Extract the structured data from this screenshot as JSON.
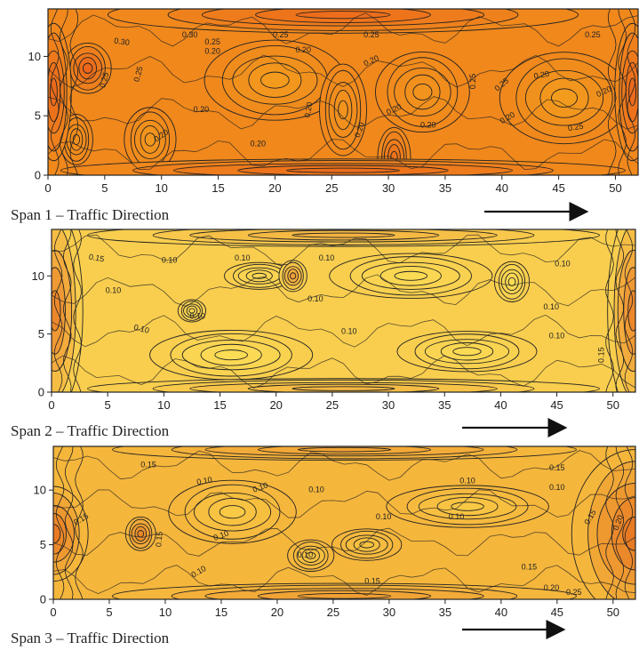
{
  "chart_data": [
    {
      "type": "heatmap",
      "subtype": "contour",
      "caption": "Span 1 – Traffic Direction",
      "direction": "left-to-right",
      "xlim": [
        0,
        52
      ],
      "ylim": [
        0,
        14
      ],
      "xticks": [
        "0",
        "5",
        "10",
        "15",
        "20",
        "25",
        "30",
        "35",
        "40",
        "45",
        "50"
      ],
      "yticks": [
        "0",
        "5",
        "10"
      ],
      "grid": false,
      "colors": {
        "low": "#f6b21e",
        "high": "#e8541a",
        "line": "#222222"
      },
      "contour_labels": [
        {
          "text": "0.30",
          "x": 6.5,
          "y": 11.2,
          "rot": 8
        },
        {
          "text": "0.30",
          "x": 12.5,
          "y": 11.8,
          "rot": 0
        },
        {
          "text": "0.25",
          "x": 14.5,
          "y": 11.2,
          "rot": 0
        },
        {
          "text": "0.20",
          "x": 14.5,
          "y": 10.4,
          "rot": 0
        },
        {
          "text": "0.25",
          "x": 20.5,
          "y": 11.8,
          "rot": 0
        },
        {
          "text": "0.20",
          "x": 22.5,
          "y": 10.5,
          "rot": 0
        },
        {
          "text": "0.25",
          "x": 28.5,
          "y": 11.8,
          "rot": 0
        },
        {
          "text": "0.20",
          "x": 28.5,
          "y": 9.6,
          "rot": -25
        },
        {
          "text": "0.25",
          "x": 37.5,
          "y": 7.9,
          "rot": -90
        },
        {
          "text": "0.25",
          "x": 40.0,
          "y": 7.6,
          "rot": -40
        },
        {
          "text": "0.20",
          "x": 43.5,
          "y": 8.4,
          "rot": -10
        },
        {
          "text": "0.25",
          "x": 48.0,
          "y": 11.8,
          "rot": 0
        },
        {
          "text": "0.20",
          "x": 49.0,
          "y": 7.0,
          "rot": -25
        },
        {
          "text": "0.25",
          "x": 46.5,
          "y": 4.0,
          "rot": -10
        },
        {
          "text": "0.20",
          "x": 40.5,
          "y": 4.8,
          "rot": -30
        },
        {
          "text": "0.20",
          "x": 30.5,
          "y": 5.5,
          "rot": -25
        },
        {
          "text": "0.20",
          "x": 33.5,
          "y": 4.2,
          "rot": 0
        },
        {
          "text": "0.20",
          "x": 27.5,
          "y": 3.8,
          "rot": -70
        },
        {
          "text": "0.20",
          "x": 23.0,
          "y": 5.5,
          "rot": -80
        },
        {
          "text": "0.20",
          "x": 18.5,
          "y": 2.6,
          "rot": 0
        },
        {
          "text": "0.20",
          "x": 13.5,
          "y": 5.5,
          "rot": 0
        },
        {
          "text": "0.20",
          "x": 10.0,
          "y": 3.3,
          "rot": -35
        },
        {
          "text": "0.25",
          "x": 8.0,
          "y": 8.5,
          "rot": -75
        },
        {
          "text": "0.25",
          "x": 5.0,
          "y": 8.0,
          "rot": -75
        }
      ],
      "hotspots": [
        {
          "x": 3.5,
          "y": 9.0,
          "rx": 2.0,
          "ry": 2.2,
          "level": 0.9
        },
        {
          "x": 30.5,
          "y": 1.5,
          "rx": 1.4,
          "ry": 2.6,
          "level": 0.75
        },
        {
          "x": 0.5,
          "y": 7.0,
          "rx": 1.5,
          "ry": 6.0,
          "level": 0.85
        },
        {
          "x": 51.5,
          "y": 7.0,
          "rx": 1.5,
          "ry": 6.0,
          "level": 0.85
        },
        {
          "x": 26.0,
          "y": 13.5,
          "rx": 20.0,
          "ry": 1.6,
          "level": 0.8
        },
        {
          "x": 26.0,
          "y": 0.4,
          "rx": 24.0,
          "ry": 1.0,
          "level": 0.8
        }
      ],
      "coolspots": [
        {
          "x": 20.0,
          "y": 8.0,
          "rx": 6.0,
          "ry": 3.5,
          "level": 0.2
        },
        {
          "x": 45.5,
          "y": 6.5,
          "rx": 5.5,
          "ry": 4.0,
          "level": 0.2
        },
        {
          "x": 9.0,
          "y": 3.0,
          "rx": 2.2,
          "ry": 2.8,
          "level": 0.25
        },
        {
          "x": 33.0,
          "y": 7.0,
          "rx": 4.0,
          "ry": 3.5,
          "level": 0.3
        },
        {
          "x": 26.0,
          "y": 5.5,
          "rx": 2.0,
          "ry": 4.0,
          "level": 0.3
        },
        {
          "x": 2.5,
          "y": 3.0,
          "rx": 1.4,
          "ry": 2.2,
          "level": 0.35
        }
      ],
      "base_level": 0.45
    },
    {
      "type": "heatmap",
      "subtype": "contour",
      "caption": "Span 2 – Traffic Direction",
      "direction": "left-to-right",
      "xlim": [
        0,
        52
      ],
      "ylim": [
        0,
        14
      ],
      "xticks": [
        "0",
        "5",
        "10",
        "15",
        "20",
        "25",
        "30",
        "35",
        "40",
        "45",
        "50"
      ],
      "yticks": [
        "0",
        "5",
        "10"
      ],
      "grid": false,
      "colors": {
        "low": "#fde65a",
        "high": "#e8701f",
        "line": "#222222"
      },
      "contour_labels": [
        {
          "text": "0.15",
          "x": 4.0,
          "y": 11.5,
          "rot": 10
        },
        {
          "text": "0.10",
          "x": 5.5,
          "y": 8.7,
          "rot": 0
        },
        {
          "text": "0.10",
          "x": 10.5,
          "y": 11.3,
          "rot": 0
        },
        {
          "text": "0.10",
          "x": 17.0,
          "y": 11.5,
          "rot": 0
        },
        {
          "text": "0.10",
          "x": 24.5,
          "y": 11.5,
          "rot": 0
        },
        {
          "text": "0.10",
          "x": 23.5,
          "y": 8.0,
          "rot": 0
        },
        {
          "text": "0.10",
          "x": 13.0,
          "y": 6.5,
          "rot": 0
        },
        {
          "text": "0.10",
          "x": 8.0,
          "y": 5.4,
          "rot": 15
        },
        {
          "text": "0.10",
          "x": 26.5,
          "y": 5.2,
          "rot": 0
        },
        {
          "text": "0.10",
          "x": 45.5,
          "y": 11.0,
          "rot": 0
        },
        {
          "text": "0.10",
          "x": 44.5,
          "y": 7.3,
          "rot": 0
        },
        {
          "text": "0.10",
          "x": 45.0,
          "y": 4.8,
          "rot": 0
        },
        {
          "text": "0.15",
          "x": 49.0,
          "y": 3.2,
          "rot": -90
        }
      ],
      "hotspots": [
        {
          "x": 0.3,
          "y": 7.0,
          "rx": 2.4,
          "ry": 9.0,
          "level": 0.95
        },
        {
          "x": 51.8,
          "y": 7.0,
          "rx": 2.2,
          "ry": 9.0,
          "level": 0.95
        },
        {
          "x": 21.5,
          "y": 10.0,
          "rx": 1.2,
          "ry": 1.4,
          "level": 0.7
        },
        {
          "x": 26.0,
          "y": 13.5,
          "rx": 22.0,
          "ry": 1.0,
          "level": 0.5
        },
        {
          "x": 26.0,
          "y": 0.3,
          "rx": 22.0,
          "ry": 0.9,
          "level": 0.45
        }
      ],
      "coolspots": [
        {
          "x": 16.0,
          "y": 3.2,
          "rx": 7.0,
          "ry": 2.2,
          "level": 0.05
        },
        {
          "x": 37.0,
          "y": 3.5,
          "rx": 6.0,
          "ry": 1.8,
          "level": 0.08
        },
        {
          "x": 32.0,
          "y": 10.0,
          "rx": 7.0,
          "ry": 2.0,
          "level": 0.08
        },
        {
          "x": 41.0,
          "y": 9.5,
          "rx": 1.5,
          "ry": 1.8,
          "level": 0.05
        },
        {
          "x": 12.5,
          "y": 7.0,
          "rx": 1.2,
          "ry": 1.0,
          "level": 0.08
        },
        {
          "x": 18.5,
          "y": 10.0,
          "rx": 3.0,
          "ry": 1.2,
          "level": 0.1
        }
      ],
      "base_level": 0.2
    },
    {
      "type": "heatmap",
      "subtype": "contour",
      "caption": "Span 3 – Traffic Direction",
      "direction": "left-to-right",
      "xlim": [
        0,
        52
      ],
      "ylim": [
        0,
        14
      ],
      "xticks": [
        "0",
        "5",
        "10",
        "15",
        "20",
        "25",
        "30",
        "35",
        "40",
        "45",
        "50"
      ],
      "yticks": [
        "0",
        "5",
        "10"
      ],
      "grid": false,
      "colors": {
        "low": "#fcd84a",
        "high": "#e3651c",
        "line": "#222222"
      },
      "contour_labels": [
        {
          "text": "0.15",
          "x": 8.5,
          "y": 12.3,
          "rot": 0
        },
        {
          "text": "0.15",
          "x": 2.5,
          "y": 7.3,
          "rot": -30
        },
        {
          "text": "0.15",
          "x": 9.5,
          "y": 5.5,
          "rot": -85
        },
        {
          "text": "0.10",
          "x": 13.5,
          "y": 10.8,
          "rot": -10
        },
        {
          "text": "0.10",
          "x": 18.5,
          "y": 10.2,
          "rot": -20
        },
        {
          "text": "0.10",
          "x": 23.5,
          "y": 10.0,
          "rot": 0
        },
        {
          "text": "0.10",
          "x": 15.0,
          "y": 5.8,
          "rot": -20
        },
        {
          "text": "0.10",
          "x": 13.0,
          "y": 2.5,
          "rot": -30
        },
        {
          "text": "0.10",
          "x": 29.5,
          "y": 7.5,
          "rot": 0
        },
        {
          "text": "0.10",
          "x": 36.0,
          "y": 7.5,
          "rot": 0
        },
        {
          "text": "0.10",
          "x": 37.0,
          "y": 10.8,
          "rot": 0
        },
        {
          "text": "0.10",
          "x": 45.0,
          "y": 10.2,
          "rot": 0
        },
        {
          "text": "0.15",
          "x": 45.0,
          "y": 12.0,
          "rot": 0
        },
        {
          "text": "0.15",
          "x": 48.0,
          "y": 7.5,
          "rot": -60
        },
        {
          "text": "0.20",
          "x": 50.5,
          "y": 7.0,
          "rot": -70
        },
        {
          "text": "0.15",
          "x": 42.5,
          "y": 2.9,
          "rot": 0
        },
        {
          "text": "0.20",
          "x": 44.5,
          "y": 1.0,
          "rot": 0
        },
        {
          "text": "0.25",
          "x": 46.5,
          "y": 0.6,
          "rot": 0
        },
        {
          "text": "0.15",
          "x": 28.5,
          "y": 1.6,
          "rot": 0
        },
        {
          "text": "0.10",
          "x": 22.5,
          "y": 4.0,
          "rot": 0
        }
      ],
      "hotspots": [
        {
          "x": 0.0,
          "y": 6.0,
          "rx": 3.0,
          "ry": 4.5,
          "level": 0.95
        },
        {
          "x": 7.8,
          "y": 6.0,
          "rx": 1.3,
          "ry": 1.6,
          "level": 0.8
        },
        {
          "x": 52.0,
          "y": 6.0,
          "rx": 5.5,
          "ry": 8.0,
          "level": 0.95
        },
        {
          "x": 26.0,
          "y": 0.3,
          "rx": 20.0,
          "ry": 1.2,
          "level": 0.55
        },
        {
          "x": 26.0,
          "y": 13.7,
          "rx": 20.0,
          "ry": 1.0,
          "level": 0.5
        }
      ],
      "coolspots": [
        {
          "x": 16.0,
          "y": 8.0,
          "rx": 5.5,
          "ry": 3.0,
          "level": 0.1
        },
        {
          "x": 37.0,
          "y": 8.5,
          "rx": 7.0,
          "ry": 2.0,
          "level": 0.1
        },
        {
          "x": 23.0,
          "y": 4.0,
          "rx": 2.0,
          "ry": 1.5,
          "level": 0.12
        },
        {
          "x": 28.0,
          "y": 5.0,
          "rx": 3.0,
          "ry": 1.5,
          "level": 0.15
        }
      ],
      "base_level": 0.3
    }
  ]
}
